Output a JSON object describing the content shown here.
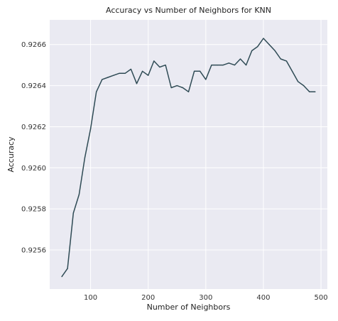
{
  "chart_data": {
    "type": "line",
    "title": "Accuracy vs Number of Neighbors for KNN",
    "xlabel": "Number of Neighbors",
    "ylabel": "Accuracy",
    "xlim": [
      29,
      511
    ],
    "ylim": [
      0.92541,
      0.92672
    ],
    "x_ticks": [
      100,
      200,
      300,
      400,
      500
    ],
    "y_ticks": [
      0.9256,
      0.9258,
      0.926,
      0.9262,
      0.9264,
      0.9266
    ],
    "x_tick_labels": [
      "100",
      "200",
      "300",
      "400",
      "500"
    ],
    "y_tick_labels": [
      "0.9256",
      "0.9258",
      "0.9260",
      "0.9262",
      "0.9264",
      "0.9266"
    ],
    "grid": true,
    "background_color": "#eaeaf2",
    "grid_color": "#ffffff",
    "line_color": "#2f4b55",
    "series": [
      {
        "x": [
          50,
          60,
          70,
          80,
          90,
          100,
          110,
          120,
          130,
          140,
          150,
          160,
          170,
          180,
          190,
          200,
          210,
          220,
          230,
          240,
          250,
          260,
          270,
          280,
          290,
          300,
          310,
          320,
          330,
          340,
          350,
          360,
          370,
          380,
          390,
          400,
          410,
          420,
          430,
          440,
          450,
          460,
          470,
          480,
          490
        ],
        "y": [
          0.92547,
          0.92551,
          0.92578,
          0.92587,
          0.92605,
          0.92619,
          0.92637,
          0.92643,
          0.92644,
          0.92645,
          0.92646,
          0.92646,
          0.92648,
          0.92641,
          0.92647,
          0.92645,
          0.92652,
          0.92649,
          0.9265,
          0.92639,
          0.9264,
          0.92639,
          0.92637,
          0.92647,
          0.92647,
          0.92643,
          0.9265,
          0.9265,
          0.9265,
          0.92651,
          0.9265,
          0.92653,
          0.9265,
          0.92657,
          0.92659,
          0.92663,
          0.9266,
          0.92657,
          0.92653,
          0.92652,
          0.92647,
          0.92642,
          0.9264,
          0.92637,
          0.92637
        ]
      }
    ]
  }
}
